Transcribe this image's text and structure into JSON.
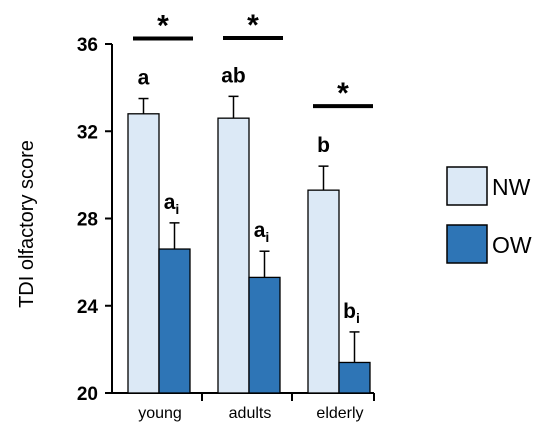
{
  "chart_data": {
    "type": "bar",
    "categories": [
      "young",
      "adults",
      "elderly"
    ],
    "ylabel": "TDI olfactory score",
    "xlabel": "",
    "ylim": [
      20,
      36
    ],
    "yticks": [
      "20",
      "24",
      "28",
      "32",
      "36"
    ],
    "grid": false,
    "legend_position": "right",
    "series": [
      {
        "name": "NW",
        "color": "#dce9f6",
        "values": [
          32.8,
          32.6,
          29.3
        ],
        "errors": [
          0.7,
          1.0,
          1.1
        ],
        "letters": [
          {
            "main": "a",
            "sub": ""
          },
          {
            "main": "ab",
            "sub": ""
          },
          {
            "main": "b",
            "sub": ""
          }
        ]
      },
      {
        "name": "OW",
        "color": "#2e75b6",
        "values": [
          26.6,
          25.3,
          21.4
        ],
        "errors": [
          1.2,
          1.2,
          1.4
        ],
        "letters": [
          {
            "main": "a",
            "sub": "i"
          },
          {
            "main": "a",
            "sub": "i"
          },
          {
            "main": "b",
            "sub": "i"
          }
        ]
      }
    ],
    "significance": [
      {
        "category": "young",
        "symbol": "*"
      },
      {
        "category": "adults",
        "symbol": "*"
      },
      {
        "category": "elderly",
        "symbol": "*"
      }
    ]
  }
}
